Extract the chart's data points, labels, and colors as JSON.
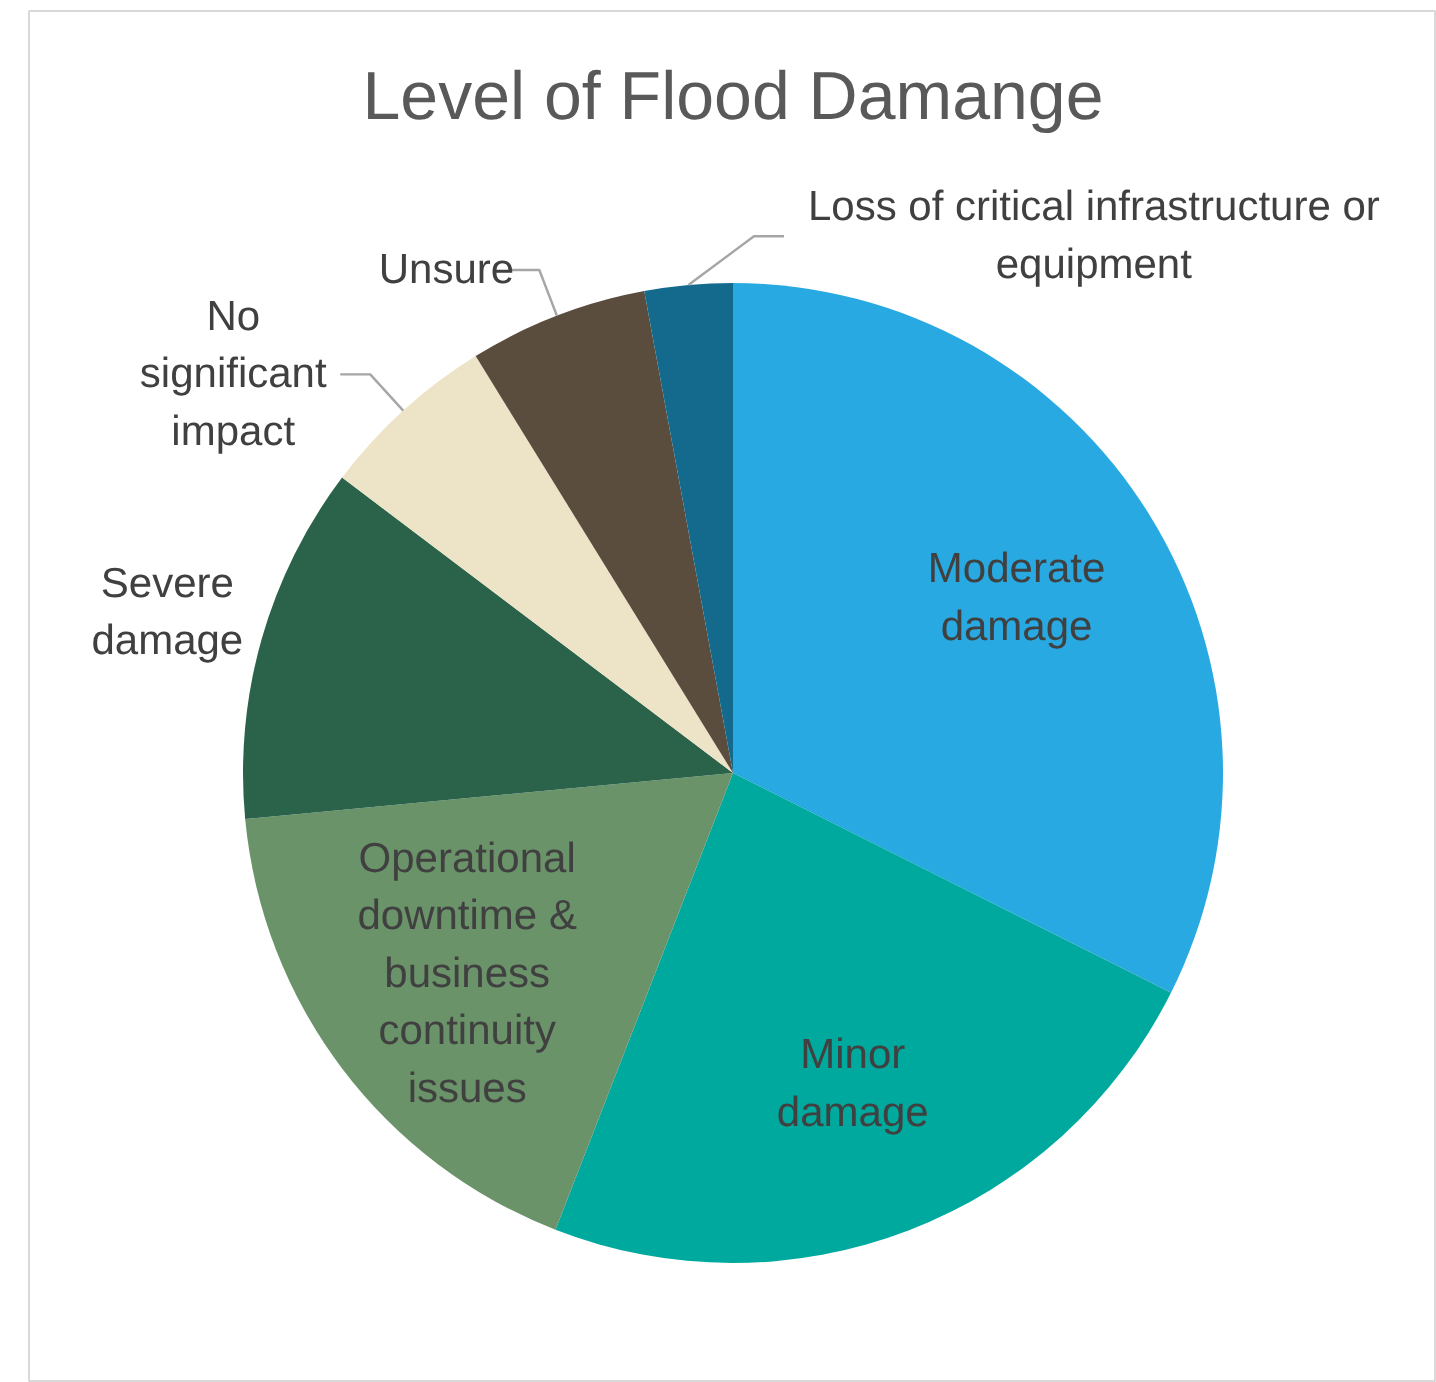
{
  "chart_data": {
    "type": "pie",
    "title": "Level of Flood Damange",
    "categories": [
      "Moderate damage",
      "Minor damage",
      "Operational downtime & business continuity issues",
      "Severe damage",
      "No significant impact",
      "Unsure",
      "Loss of critical infrastructure or equipment"
    ],
    "values": [
      32.4,
      23.5,
      17.6,
      11.8,
      5.9,
      5.9,
      2.9
    ],
    "colors": [
      "#29a9e1",
      "#00a99d",
      "#6a9369",
      "#2a634a",
      "#ede4c8",
      "#5b4d3e",
      "#136a8d"
    ]
  }
}
